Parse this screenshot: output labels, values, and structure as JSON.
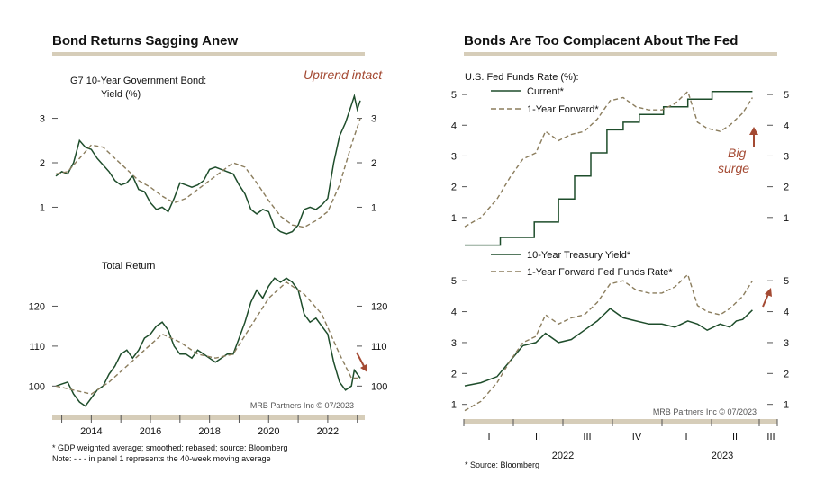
{
  "colors": {
    "actual": "#1e4d2b",
    "dashed": "#8b7d5d",
    "accent": "#a44a33",
    "band": "#d6cdb9"
  },
  "left": {
    "title": "Bond Returns Sagging Anew",
    "source_credit": "MRB Partners Inc © 07/2023",
    "footnote1": "* GDP weighted average; smoothed; rebased; source: Bloomberg",
    "footnote2": "Note: - - - in panel 1 represents the 40-week moving average",
    "x_ticks": [
      "2014",
      "2016",
      "2018",
      "2020",
      "2022"
    ]
  },
  "right": {
    "title": "Bonds Are Too Complacent About The Fed",
    "source_credit": "MRB Partners Inc © 07/2023",
    "footnote": "* Source: Bloomberg",
    "quarter_ticks": [
      "I",
      "II",
      "III",
      "IV",
      "I",
      "II",
      "III"
    ],
    "year_labels": [
      "2022",
      "2023"
    ]
  },
  "chart_data": [
    {
      "type": "line",
      "panel": "left-top",
      "title": "G7 10-Year Government Bond:",
      "subtitle": "Yield (%)",
      "annotation": "Uptrend intact",
      "xlim": [
        2012.8,
        2023.1
      ],
      "ylim": [
        0.2,
        3.8
      ],
      "y_ticks": [
        1,
        2,
        3
      ],
      "series": [
        {
          "name": "",
          "style": "solid",
          "x": [
            2012.8,
            2013.0,
            2013.2,
            2013.4,
            2013.6,
            2013.8,
            2014.0,
            2014.2,
            2014.4,
            2014.6,
            2014.8,
            2015.0,
            2015.2,
            2015.4,
            2015.6,
            2015.8,
            2016.0,
            2016.2,
            2016.4,
            2016.6,
            2016.8,
            2017.0,
            2017.2,
            2017.4,
            2017.6,
            2017.8,
            2018.0,
            2018.2,
            2018.4,
            2018.6,
            2018.8,
            2019.0,
            2019.2,
            2019.4,
            2019.6,
            2019.8,
            2020.0,
            2020.2,
            2020.4,
            2020.6,
            2020.8,
            2021.0,
            2021.2,
            2021.4,
            2021.6,
            2021.8,
            2022.0,
            2022.2,
            2022.4,
            2022.6,
            2022.8,
            2022.9,
            2023.0,
            2023.1
          ],
          "y": [
            1.7,
            1.8,
            1.75,
            2.0,
            2.5,
            2.35,
            2.3,
            2.1,
            1.95,
            1.8,
            1.6,
            1.5,
            1.55,
            1.7,
            1.4,
            1.35,
            1.1,
            0.95,
            1.0,
            0.9,
            1.2,
            1.55,
            1.5,
            1.45,
            1.5,
            1.6,
            1.85,
            1.9,
            1.85,
            1.8,
            1.75,
            1.5,
            1.3,
            0.95,
            0.85,
            0.95,
            0.9,
            0.55,
            0.45,
            0.4,
            0.45,
            0.6,
            0.95,
            1.0,
            0.95,
            1.05,
            1.2,
            2.0,
            2.6,
            2.9,
            3.3,
            3.5,
            3.2,
            3.4
          ]
        },
        {
          "name": "",
          "style": "dashed",
          "x": [
            2012.8,
            2013.2,
            2013.6,
            2014.0,
            2014.4,
            2014.8,
            2015.2,
            2015.6,
            2016.0,
            2016.4,
            2016.8,
            2017.2,
            2017.6,
            2018.0,
            2018.4,
            2018.8,
            2019.2,
            2019.6,
            2020.0,
            2020.4,
            2020.8,
            2021.2,
            2021.6,
            2022.0,
            2022.4,
            2022.8,
            2023.1
          ],
          "y": [
            1.75,
            1.8,
            2.1,
            2.4,
            2.35,
            2.1,
            1.85,
            1.6,
            1.45,
            1.25,
            1.1,
            1.2,
            1.4,
            1.6,
            1.8,
            2.0,
            1.9,
            1.55,
            1.15,
            0.8,
            0.6,
            0.55,
            0.7,
            0.9,
            1.5,
            2.4,
            3.0
          ]
        }
      ]
    },
    {
      "type": "line",
      "panel": "left-bottom",
      "title": "Total Return",
      "xlim": [
        2012.8,
        2023.1
      ],
      "ylim": [
        94,
        130
      ],
      "y_ticks": [
        100,
        110,
        120
      ],
      "series": [
        {
          "name": "",
          "style": "solid",
          "x": [
            2012.8,
            2013.0,
            2013.2,
            2013.4,
            2013.6,
            2013.8,
            2014.0,
            2014.2,
            2014.4,
            2014.6,
            2014.8,
            2015.0,
            2015.2,
            2015.4,
            2015.6,
            2015.8,
            2016.0,
            2016.2,
            2016.4,
            2016.6,
            2016.8,
            2017.0,
            2017.2,
            2017.4,
            2017.6,
            2017.8,
            2018.0,
            2018.2,
            2018.4,
            2018.6,
            2018.8,
            2019.0,
            2019.2,
            2019.4,
            2019.6,
            2019.8,
            2020.0,
            2020.2,
            2020.4,
            2020.6,
            2020.8,
            2021.0,
            2021.2,
            2021.4,
            2021.6,
            2021.8,
            2022.0,
            2022.2,
            2022.4,
            2022.6,
            2022.8,
            2022.9,
            2023.0,
            2023.1
          ],
          "y": [
            100,
            100.5,
            101,
            98,
            96,
            95,
            97,
            99,
            100,
            103,
            105,
            108,
            109,
            107,
            109,
            112,
            113,
            115,
            116,
            114,
            110,
            108,
            108,
            107,
            109,
            108,
            107,
            106,
            107,
            108,
            108,
            112,
            116,
            121,
            124,
            122,
            125,
            127,
            126,
            127,
            126,
            124,
            118,
            116,
            117,
            115,
            113,
            106,
            101,
            99,
            100,
            104,
            103,
            102
          ]
        },
        {
          "name": "",
          "style": "dashed",
          "x": [
            2012.8,
            2013.4,
            2014.0,
            2014.6,
            2015.2,
            2015.8,
            2016.4,
            2017.0,
            2017.6,
            2018.2,
            2018.8,
            2019.4,
            2020.0,
            2020.6,
            2021.2,
            2021.8,
            2022.4,
            2022.8,
            2023.1
          ],
          "y": [
            100,
            99,
            98,
            101,
            105,
            109,
            113,
            111,
            108,
            107,
            108,
            115,
            122,
            126,
            123,
            118,
            108,
            102,
            102
          ]
        }
      ]
    },
    {
      "type": "line",
      "panel": "right-top",
      "title": "U.S. Fed Funds Rate (%):",
      "annotation": "Big surge",
      "xlim": [
        0,
        18.5
      ],
      "ylim": [
        0,
        5.5
      ],
      "y_ticks": [
        1,
        2,
        3,
        4,
        5
      ],
      "series": [
        {
          "name": "Current*",
          "style": "solid",
          "x": [
            0,
            2.2,
            2.2,
            4.3,
            4.3,
            5.8,
            5.8,
            6.8,
            6.8,
            7.8,
            7.8,
            8.8,
            8.8,
            9.8,
            9.8,
            10.8,
            10.8,
            12.3,
            12.3,
            13.8,
            13.8,
            15.3,
            15.3,
            17.8
          ],
          "y": [
            0.1,
            0.1,
            0.35,
            0.35,
            0.85,
            0.85,
            1.6,
            1.6,
            2.35,
            2.35,
            3.1,
            3.1,
            3.85,
            3.85,
            4.1,
            4.1,
            4.35,
            4.35,
            4.6,
            4.6,
            4.85,
            4.85,
            5.1,
            5.1
          ]
        },
        {
          "name": "1-Year Forward*",
          "style": "dashed",
          "x": [
            0,
            1.0,
            2.0,
            2.8,
            3.6,
            4.4,
            5.0,
            5.8,
            6.6,
            7.4,
            8.2,
            9.0,
            9.8,
            10.6,
            11.4,
            12.2,
            13.0,
            13.8,
            14.4,
            15.0,
            15.8,
            16.4,
            16.8,
            17.2,
            17.8
          ],
          "y": [
            0.7,
            1.0,
            1.6,
            2.3,
            2.9,
            3.1,
            3.8,
            3.5,
            3.7,
            3.8,
            4.2,
            4.8,
            4.9,
            4.6,
            4.5,
            4.5,
            4.7,
            5.1,
            4.1,
            3.9,
            3.8,
            4.0,
            4.2,
            4.4,
            4.9
          ]
        }
      ]
    },
    {
      "type": "line",
      "panel": "right-bottom",
      "xlim": [
        0,
        18.5
      ],
      "ylim": [
        0.7,
        5.5
      ],
      "y_ticks": [
        1,
        2,
        3,
        4,
        5
      ],
      "series": [
        {
          "name": "10-Year Treasury Yield*",
          "style": "solid",
          "x": [
            0,
            1.0,
            2.0,
            2.8,
            3.6,
            4.4,
            5.0,
            5.8,
            6.6,
            7.4,
            8.2,
            9.0,
            9.8,
            10.6,
            11.4,
            12.2,
            13.0,
            13.8,
            14.4,
            15.0,
            15.8,
            16.4,
            16.8,
            17.2,
            17.8
          ],
          "y": [
            1.6,
            1.7,
            1.9,
            2.4,
            2.9,
            3.0,
            3.3,
            3.0,
            3.1,
            3.4,
            3.7,
            4.1,
            3.8,
            3.7,
            3.6,
            3.6,
            3.5,
            3.7,
            3.6,
            3.4,
            3.6,
            3.5,
            3.7,
            3.75,
            4.05
          ]
        },
        {
          "name": "1-Year Forward Fed Funds Rate*",
          "style": "dashed",
          "x": [
            0,
            1.0,
            2.0,
            2.8,
            3.6,
            4.4,
            5.0,
            5.8,
            6.6,
            7.4,
            8.2,
            9.0,
            9.8,
            10.6,
            11.4,
            12.2,
            13.0,
            13.8,
            14.4,
            15.0,
            15.8,
            16.4,
            16.8,
            17.2,
            17.8
          ],
          "y": [
            0.8,
            1.1,
            1.7,
            2.4,
            3.0,
            3.2,
            3.9,
            3.6,
            3.8,
            3.9,
            4.3,
            4.9,
            5.0,
            4.7,
            4.6,
            4.6,
            4.8,
            5.2,
            4.2,
            4.0,
            3.9,
            4.1,
            4.3,
            4.5,
            5.0
          ]
        }
      ]
    }
  ]
}
